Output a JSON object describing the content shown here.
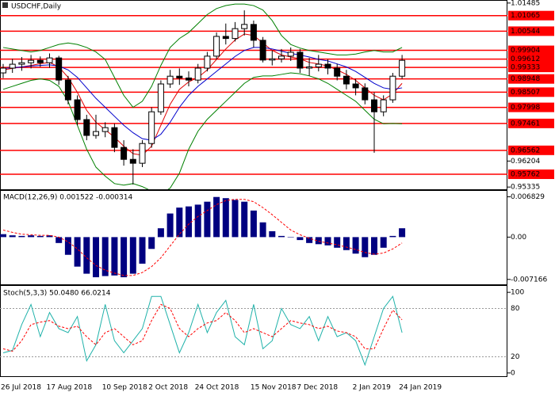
{
  "chart_data": [
    {
      "type": "candlestick",
      "title": "USDCHF,Daily",
      "open": [
        0.9915,
        0.9931,
        0.9944,
        0.9949,
        0.9957,
        0.9949,
        0.9965,
        0.9891,
        0.9825,
        0.9759,
        0.9706,
        0.9719,
        0.9732,
        0.9666,
        0.9626,
        0.9613,
        0.9679,
        0.9785,
        0.9878,
        0.9904,
        0.9898,
        0.9891,
        0.9931,
        0.9971,
        1.0037,
        1.003,
        1.0063,
        1.0077,
        1.0024,
        0.9958,
        0.9962,
        0.9971,
        0.9984,
        0.9931,
        0.9935,
        0.9944,
        0.9931,
        0.9904,
        0.9878,
        0.9865,
        0.9825,
        0.9785,
        0.9825,
        0.9904
      ],
      "high": [
        0.9945,
        0.9962,
        0.9968,
        0.9975,
        0.997,
        0.998,
        0.9972,
        0.9905,
        0.984,
        0.9775,
        0.9775,
        0.975,
        0.9745,
        0.969,
        0.966,
        0.969,
        0.98,
        0.989,
        0.9925,
        0.993,
        0.992,
        0.9945,
        0.9985,
        1.005,
        1.008,
        1.0085,
        1.0124,
        1.009,
        1.0035,
        0.999,
        0.9995,
        1.0,
        0.9995,
        0.9965,
        0.9975,
        0.996,
        0.9945,
        0.9925,
        0.9895,
        0.988,
        0.985,
        0.984,
        0.9915,
        0.9975
      ],
      "low": [
        0.9898,
        0.9915,
        0.9922,
        0.993,
        0.9935,
        0.9932,
        0.9875,
        0.981,
        0.974,
        0.969,
        0.9695,
        0.97,
        0.965,
        0.9605,
        0.9542,
        0.96,
        0.9665,
        0.9775,
        0.9865,
        0.9875,
        0.987,
        0.988,
        0.992,
        0.996,
        1.001,
        1.002,
        1.004,
        1.0,
        0.995,
        0.994,
        0.995,
        0.9955,
        0.9915,
        0.9905,
        0.992,
        0.991,
        0.989,
        0.986,
        0.984,
        0.981,
        0.9648,
        0.977,
        0.9815,
        0.9895
      ],
      "close": [
        0.9931,
        0.9944,
        0.9949,
        0.9957,
        0.9949,
        0.9965,
        0.9891,
        0.9825,
        0.9759,
        0.9706,
        0.9719,
        0.9732,
        0.9666,
        0.9626,
        0.9613,
        0.9679,
        0.9785,
        0.9878,
        0.9904,
        0.9898,
        0.9891,
        0.9931,
        0.9971,
        1.0037,
        1.003,
        1.0063,
        1.0077,
        1.0024,
        0.9958,
        0.9962,
        0.9971,
        0.9984,
        0.9931,
        0.9935,
        0.9944,
        0.9931,
        0.9904,
        0.9878,
        0.9865,
        0.9825,
        0.9785,
        0.9825,
        0.9904,
        0.9957
      ],
      "color_up": "#ffffff",
      "color_down": "#000000",
      "overlays": [
        {
          "color": "#e00000",
          "values": [
            0.9925,
            0.993,
            0.9935,
            0.994,
            0.9946,
            0.995,
            0.9935,
            0.99,
            0.985,
            0.979,
            0.975,
            0.9725,
            0.97,
            0.967,
            0.9645,
            0.964,
            0.967,
            0.974,
            0.981,
            0.986,
            0.9885,
            0.99,
            0.9925,
            0.996,
            0.9995,
            1.0025,
            1.0045,
            1.004,
            1.0015,
            0.999,
            0.9975,
            0.9968,
            0.9962,
            0.995,
            0.9945,
            0.9938,
            0.9925,
            0.991,
            0.989,
            0.9865,
            0.984,
            0.9825,
            0.9845,
            0.988
          ]
        },
        {
          "color": "#0000cc",
          "values": [
            0.993,
            0.9932,
            0.9935,
            0.9938,
            0.994,
            0.9942,
            0.9938,
            0.9925,
            0.99,
            0.9865,
            0.983,
            0.98,
            0.977,
            0.974,
            0.9715,
            0.9695,
            0.969,
            0.971,
            0.975,
            0.98,
            0.984,
            0.987,
            0.9895,
            0.992,
            0.9945,
            0.997,
            0.999,
            1.0,
            1.0,
            0.9995,
            0.9988,
            0.998,
            0.9975,
            0.9968,
            0.996,
            0.9955,
            0.9945,
            0.9935,
            0.992,
            0.99,
            0.988,
            0.9865,
            0.986,
            0.9865
          ]
        },
        {
          "color": "#008000",
          "values": [
            1.0,
            0.9995,
            0.999,
            0.9985,
            0.999,
            1.0,
            1.001,
            1.0015,
            1.001,
            1.0,
            0.9985,
            0.996,
            0.99,
            0.984,
            0.98,
            0.982,
            0.987,
            0.994,
            1.0,
            1.003,
            1.005,
            1.008,
            1.011,
            1.013,
            1.014,
            1.0145,
            1.0145,
            1.014,
            1.0125,
            1.009,
            1.004,
            1.001,
            0.9998,
            0.999,
            0.9985,
            0.998,
            0.9975,
            0.9975,
            0.9978,
            0.9985,
            0.999,
            0.9985,
            0.9985,
            1.0
          ]
        },
        {
          "color": "#008000",
          "values": [
            0.986,
            0.987,
            0.988,
            0.989,
            0.9895,
            0.989,
            0.987,
            0.982,
            0.974,
            0.966,
            0.96,
            0.957,
            0.9545,
            0.954,
            0.9545,
            0.9535,
            0.952,
            0.951,
            0.953,
            0.958,
            0.966,
            0.972,
            0.976,
            0.979,
            0.982,
            0.985,
            0.988,
            0.99,
            0.9905,
            0.9905,
            0.991,
            0.9915,
            0.9912,
            0.9905,
            0.9895,
            0.988,
            0.986,
            0.984,
            0.982,
            0.979,
            0.976,
            0.9745,
            0.9746,
            0.9745
          ]
        }
      ],
      "ylim": [
        0.9526,
        1.0156
      ],
      "yticks": [
        1.01485,
        0.96204,
        0.95335
      ],
      "levels": [
        1.01065,
        1.00544,
        0.99904,
        0.99612,
        0.99333,
        0.98948,
        0.98507,
        0.97998,
        0.97461,
        0.96562,
        0.95762
      ],
      "level_color": "#ff0000",
      "level_dash": false
    },
    {
      "type": "macd",
      "title": "MACD(12,26,9) 0.001522 -0.000314",
      "series": [
        {
          "style": "bar",
          "color": "#000080",
          "values": [
            0.0005,
            0.0003,
            0.0002,
            0.0003,
            0.0002,
            0.0003,
            -0.001,
            -0.003,
            -0.005,
            -0.0062,
            -0.0068,
            -0.0066,
            -0.0065,
            -0.0068,
            -0.0062,
            -0.0045,
            -0.002,
            0.0015,
            0.004,
            0.005,
            0.0052,
            0.0055,
            0.006,
            0.0068,
            0.0066,
            0.0063,
            0.006,
            0.0045,
            0.0025,
            0.001,
            0.0002,
            0.0,
            -0.0005,
            -0.001,
            -0.0012,
            -0.0014,
            -0.0018,
            -0.0022,
            -0.0028,
            -0.0034,
            -0.003,
            -0.0018,
            0.0002,
            0.0015
          ]
        },
        {
          "style": "dashed",
          "color": "#ff0000",
          "values": [
            0.0012,
            0.0008,
            0.0005,
            0.0004,
            0.0003,
            0.0003,
            0.0,
            -0.0008,
            -0.002,
            -0.0035,
            -0.0048,
            -0.0056,
            -0.0061,
            -0.0065,
            -0.0065,
            -0.006,
            -0.005,
            -0.0035,
            -0.0015,
            0.0005,
            0.0022,
            0.0035,
            0.0045,
            0.0055,
            0.0062,
            0.0064,
            0.0064,
            0.006,
            0.005,
            0.0038,
            0.0025,
            0.0012,
            0.0004,
            -0.0002,
            -0.0007,
            -0.001,
            -0.0013,
            -0.0017,
            -0.0021,
            -0.0026,
            -0.0029,
            -0.0027,
            -0.002,
            -0.001
          ]
        }
      ],
      "ylim": [
        -0.008,
        0.0077
      ],
      "yticks": [
        0.006829,
        {
          "value": 0,
          "label": "0.00"
        },
        -0.007166
      ]
    },
    {
      "type": "stochastic",
      "title": "Stoch(5,3,3) 50.0480 66.0214",
      "series": [
        {
          "style": "line",
          "color": "#20b2aa",
          "values": [
            25,
            28,
            60,
            85,
            45,
            75,
            55,
            50,
            70,
            15,
            35,
            85,
            40,
            25,
            40,
            55,
            95,
            95,
            60,
            25,
            50,
            85,
            50,
            75,
            90,
            45,
            35,
            85,
            30,
            40,
            80,
            60,
            55,
            70,
            40,
            70,
            45,
            50,
            40,
            10,
            45,
            80,
            95,
            50
          ]
        },
        {
          "style": "dashed",
          "color": "#ff0000",
          "values": [
            30,
            27,
            40,
            60,
            63,
            65,
            58,
            55,
            58,
            45,
            35,
            50,
            55,
            45,
            35,
            40,
            65,
            85,
            80,
            55,
            45,
            55,
            62,
            65,
            75,
            65,
            50,
            55,
            50,
            45,
            55,
            65,
            62,
            60,
            55,
            58,
            52,
            50,
            45,
            30,
            30,
            55,
            78,
            66
          ]
        }
      ],
      "ylim": [
        -5,
        107
      ],
      "yticks": [
        100,
        0
      ],
      "levels": [
        80,
        20
      ],
      "level_color": "#999999",
      "level_dash": true,
      "categories": [
        "26 Jul 2018",
        null,
        null,
        null,
        null,
        "17 Aug 2018",
        null,
        null,
        null,
        null,
        null,
        "10 Sep 2018",
        null,
        null,
        null,
        null,
        "2 Oct 2018",
        null,
        null,
        null,
        null,
        "24 Oct 2018",
        null,
        null,
        null,
        null,
        null,
        "15 Nov 2018",
        null,
        null,
        null,
        null,
        "7 Dec 2018",
        null,
        null,
        null,
        null,
        null,
        "2 Jan 2019",
        null,
        null,
        null,
        null,
        "24 Jan 2019"
      ]
    }
  ]
}
